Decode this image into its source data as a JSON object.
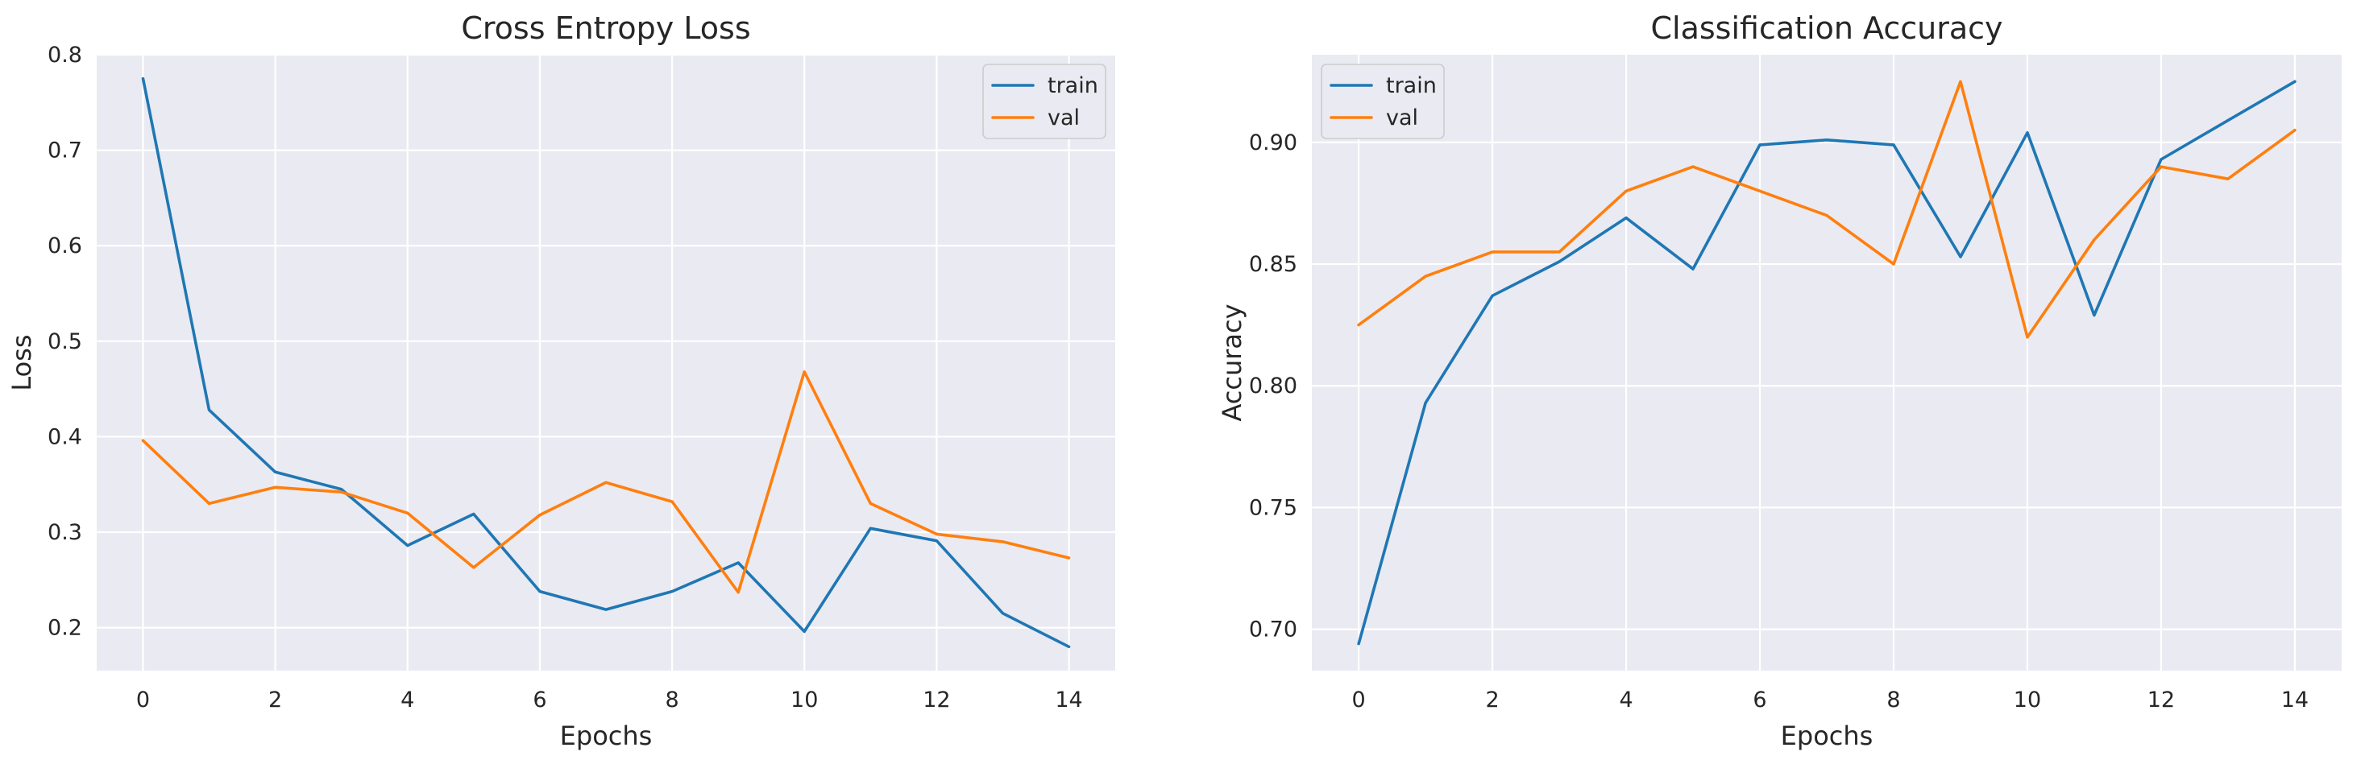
{
  "chart_data": [
    {
      "type": "line",
      "title": "Cross Entropy Loss",
      "xlabel": "Epochs",
      "ylabel": "Loss",
      "x": [
        0,
        1,
        2,
        3,
        4,
        5,
        6,
        7,
        8,
        9,
        10,
        11,
        12,
        13,
        14
      ],
      "xlim": [
        -0.7,
        14.7
      ],
      "ylim": [
        0.155,
        0.8
      ],
      "xticks": [
        0,
        2,
        4,
        6,
        8,
        10,
        12,
        14
      ],
      "yticks": [
        0.2,
        0.3,
        0.4,
        0.5,
        0.6,
        0.7,
        0.8
      ],
      "ytick_labels": [
        "0.2",
        "0.3",
        "0.4",
        "0.5",
        "0.6",
        "0.7",
        "0.8"
      ],
      "grid": true,
      "legend_position": "top-right",
      "series": [
        {
          "name": "train",
          "color": "#1f77b4",
          "values": [
            0.775,
            0.428,
            0.363,
            0.345,
            0.286,
            0.319,
            0.238,
            0.219,
            0.238,
            0.268,
            0.196,
            0.304,
            0.291,
            0.215,
            0.18
          ]
        },
        {
          "name": "val",
          "color": "#ff7f0e",
          "values": [
            0.396,
            0.33,
            0.347,
            0.342,
            0.32,
            0.263,
            0.318,
            0.352,
            0.332,
            0.237,
            0.468,
            0.33,
            0.298,
            0.29,
            0.273
          ]
        }
      ]
    },
    {
      "type": "line",
      "title": "Classification Accuracy",
      "xlabel": "Epochs",
      "ylabel": "Accuracy",
      "x": [
        0,
        1,
        2,
        3,
        4,
        5,
        6,
        7,
        8,
        9,
        10,
        11,
        12,
        13,
        14
      ],
      "xlim": [
        -0.7,
        14.7
      ],
      "ylim": [
        0.683,
        0.936
      ],
      "xticks": [
        0,
        2,
        4,
        6,
        8,
        10,
        12,
        14
      ],
      "yticks": [
        0.7,
        0.75,
        0.8,
        0.85,
        0.9
      ],
      "ytick_labels": [
        "0.70",
        "0.75",
        "0.80",
        "0.85",
        "0.90"
      ],
      "grid": true,
      "legend_position": "top-left",
      "series": [
        {
          "name": "train",
          "color": "#1f77b4",
          "values": [
            0.694,
            0.793,
            0.837,
            0.851,
            0.869,
            0.848,
            0.899,
            0.901,
            0.899,
            0.853,
            0.904,
            0.829,
            0.893,
            0.909,
            0.925
          ]
        },
        {
          "name": "val",
          "color": "#ff7f0e",
          "values": [
            0.825,
            0.845,
            0.855,
            0.855,
            0.88,
            0.89,
            0.88,
            0.87,
            0.85,
            0.925,
            0.82,
            0.86,
            0.89,
            0.885,
            0.905
          ]
        }
      ]
    }
  ]
}
